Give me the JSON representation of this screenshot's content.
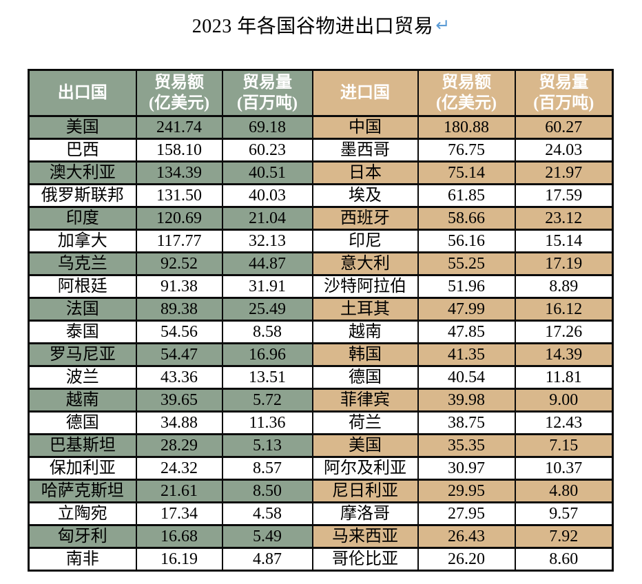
{
  "title": {
    "text": "2023 年各国谷物进出口贸易",
    "paragraph_mark": "↵"
  },
  "colors": {
    "export_green": "#8DA28F",
    "import_tan": "#D9B88C",
    "border_black": "#0a0a0a",
    "paragraph_mark_blue": "#5B9BD5",
    "header_text": "#FFFFFF",
    "body_text": "#000000"
  },
  "table": {
    "headers": [
      {
        "line1": "出口国",
        "line2": ""
      },
      {
        "line1": "贸易额",
        "line2": "(亿美元)"
      },
      {
        "line1": "贸易量",
        "line2": "(百万吨)"
      },
      {
        "line1": "进口国",
        "line2": ""
      },
      {
        "line1": "贸易额",
        "line2": "(亿美元)"
      },
      {
        "line1": "贸易量",
        "line2": "(百万吨)"
      }
    ],
    "rows": [
      {
        "export_country": "美国",
        "export_value": "241.74",
        "export_volume": "69.18",
        "import_country": "中国",
        "import_value": "180.88",
        "import_volume": "60.27"
      },
      {
        "export_country": "巴西",
        "export_value": "158.10",
        "export_volume": "60.23",
        "import_country": "墨西哥",
        "import_value": "76.75",
        "import_volume": "24.03"
      },
      {
        "export_country": "澳大利亚",
        "export_value": "134.39",
        "export_volume": "40.51",
        "import_country": "日本",
        "import_value": "75.14",
        "import_volume": "21.97"
      },
      {
        "export_country": "俄罗斯联邦",
        "export_value": "131.50",
        "export_volume": "40.03",
        "import_country": "埃及",
        "import_value": "61.85",
        "import_volume": "17.59"
      },
      {
        "export_country": "印度",
        "export_value": "120.69",
        "export_volume": "21.04",
        "import_country": "西班牙",
        "import_value": "58.66",
        "import_volume": "23.12"
      },
      {
        "export_country": "加拿大",
        "export_value": "117.77",
        "export_volume": "32.13",
        "import_country": "印尼",
        "import_value": "56.16",
        "import_volume": "15.14"
      },
      {
        "export_country": "乌克兰",
        "export_value": "92.52",
        "export_volume": "44.87",
        "import_country": "意大利",
        "import_value": "55.25",
        "import_volume": "17.19"
      },
      {
        "export_country": "阿根廷",
        "export_value": "91.38",
        "export_volume": "31.91",
        "import_country": "沙特阿拉伯",
        "import_value": "51.96",
        "import_volume": "8.89"
      },
      {
        "export_country": "法国",
        "export_value": "89.38",
        "export_volume": "25.49",
        "import_country": "土耳其",
        "import_value": "47.99",
        "import_volume": "16.12"
      },
      {
        "export_country": "泰国",
        "export_value": "54.56",
        "export_volume": "8.58",
        "import_country": "越南",
        "import_value": "47.85",
        "import_volume": "17.26"
      },
      {
        "export_country": "罗马尼亚",
        "export_value": "54.47",
        "export_volume": "16.96",
        "import_country": "韩国",
        "import_value": "41.35",
        "import_volume": "14.39"
      },
      {
        "export_country": "波兰",
        "export_value": "43.36",
        "export_volume": "13.51",
        "import_country": "德国",
        "import_value": "40.54",
        "import_volume": "11.81"
      },
      {
        "export_country": "越南",
        "export_value": "39.65",
        "export_volume": "5.72",
        "import_country": "菲律宾",
        "import_value": "39.98",
        "import_volume": "9.00"
      },
      {
        "export_country": "德国",
        "export_value": "34.88",
        "export_volume": "11.36",
        "import_country": "荷兰",
        "import_value": "38.75",
        "import_volume": "12.43"
      },
      {
        "export_country": "巴基斯坦",
        "export_value": "28.29",
        "export_volume": "5.13",
        "import_country": "美国",
        "import_value": "35.35",
        "import_volume": "7.15"
      },
      {
        "export_country": "保加利亚",
        "export_value": "24.32",
        "export_volume": "8.57",
        "import_country": "阿尔及利亚",
        "import_value": "30.97",
        "import_volume": "10.37"
      },
      {
        "export_country": "哈萨克斯坦",
        "export_value": "21.61",
        "export_volume": "8.50",
        "import_country": "尼日利亚",
        "import_value": "29.95",
        "import_volume": "4.80"
      },
      {
        "export_country": "立陶宛",
        "export_value": "17.34",
        "export_volume": "4.58",
        "import_country": "摩洛哥",
        "import_value": "27.95",
        "import_volume": "9.57"
      },
      {
        "export_country": "匈牙利",
        "export_value": "16.68",
        "export_volume": "5.49",
        "import_country": "马来西亚",
        "import_value": "26.43",
        "import_volume": "7.92"
      },
      {
        "export_country": "南非",
        "export_value": "16.19",
        "export_volume": "4.87",
        "import_country": "哥伦比亚",
        "import_value": "26.20",
        "import_volume": "8.60"
      }
    ]
  }
}
